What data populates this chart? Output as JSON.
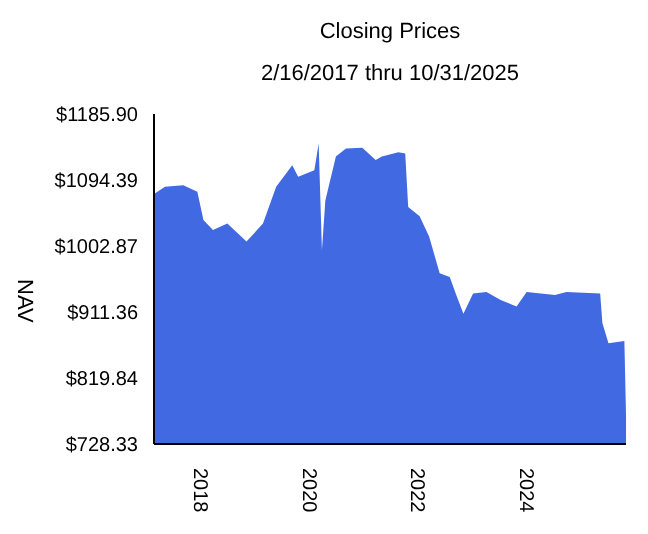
{
  "chart_data": {
    "type": "area",
    "title": "Closing Prices",
    "subtitle": "2/16/2017 thru 10/31/2025",
    "ylabel": "NAV",
    "x": [
      "2017-02-16",
      "2017-05-01",
      "2017-09-01",
      "2017-12-05",
      "2018-01-15",
      "2018-03-20",
      "2018-06-25",
      "2018-11-01",
      "2019-02-20",
      "2019-05-20",
      "2019-09-05",
      "2019-10-15",
      "2020-02-01",
      "2020-03-01",
      "2020-03-23",
      "2020-04-15",
      "2020-06-25",
      "2020-09-01",
      "2020-12-20",
      "2021-03-20",
      "2021-05-01",
      "2021-08-20",
      "2021-10-05",
      "2021-10-25",
      "2022-01-10",
      "2022-03-15",
      "2022-05-25",
      "2022-08-01",
      "2022-09-10",
      "2022-11-01",
      "2023-01-05",
      "2023-04-05",
      "2023-07-10",
      "2023-10-25",
      "2024-01-01",
      "2024-07-10",
      "2024-09-25",
      "2025-05-10",
      "2025-05-25",
      "2025-07-05",
      "2025-10-20",
      "2025-10-31"
    ],
    "series": [
      {
        "color": "#4169e1",
        "values": [
          1075,
          1085,
          1087,
          1078,
          1039,
          1025,
          1034,
          1009,
          1034,
          1085,
          1115,
          1099,
          1108,
          1145,
          997,
          1066,
          1127,
          1138,
          1139,
          1122,
          1127,
          1133,
          1131,
          1057,
          1044,
          1016,
          965,
          960,
          937,
          909,
          937,
          939,
          928,
          919,
          939,
          935,
          939,
          937,
          896,
          868,
          871,
          770
        ]
      }
    ],
    "xlim": [
      "2017-02-16",
      "2025-10-31"
    ],
    "xticks": [
      "2018",
      "2020",
      "2022",
      "2024"
    ],
    "ylim": [
      728.33,
      1185.9
    ],
    "yticks": [
      {
        "value": 728.33,
        "label": "$728.33"
      },
      {
        "value": 819.84,
        "label": "$819.84"
      },
      {
        "value": 911.36,
        "label": "$911.36"
      },
      {
        "value": 1002.87,
        "label": "$1002.87"
      },
      {
        "value": 1094.39,
        "label": "$1094.39"
      },
      {
        "value": 1185.9,
        "label": "$1185.90"
      }
    ],
    "grid": false,
    "legend": false
  }
}
